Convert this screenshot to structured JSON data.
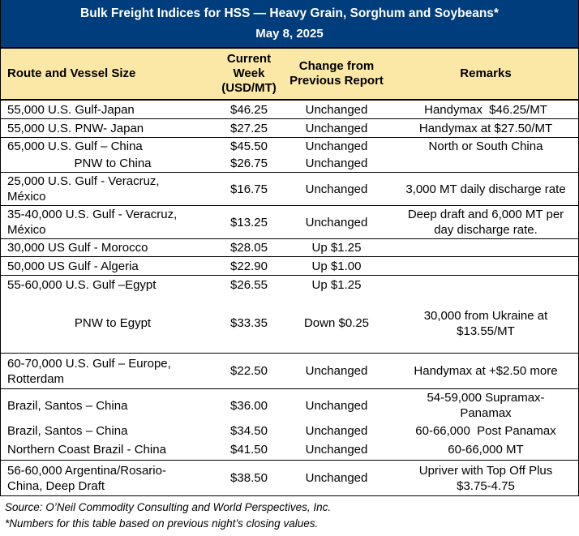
{
  "colors": {
    "header_bg": "#003d7c",
    "subheader_bg": "#fce8a6"
  },
  "header": {
    "title": "Bulk Freight Indices for HSS — Heavy Grain, Sorghum and Soybeans*",
    "date": "May 8, 2025"
  },
  "columns": [
    "Route and Vessel Size",
    "Current Week (USD/MT)",
    "Change from Previous Report",
    "Remarks"
  ],
  "table": {
    "groups": [
      {
        "lines": [
          {
            "route": "55,000 U.S. Gulf-Japan",
            "price": "$46.25",
            "change": "Unchanged",
            "remark": "Handymax  $46.25/MT"
          }
        ]
      },
      {
        "lines": [
          {
            "route": "55,000 U.S. PNW- Japan",
            "price": "$27.25",
            "change": "Unchanged",
            "remark": "Handymax at $27.50/MT"
          }
        ]
      },
      {
        "lines": [
          {
            "route": "65,000 U.S. Gulf – China",
            "price": "$45.50",
            "change": "Unchanged",
            "remark": "North or South China"
          },
          {
            "route": "PNW to China",
            "continuation": true,
            "price": "$26.75",
            "change": "Unchanged",
            "remark": ""
          }
        ]
      },
      {
        "lines": [
          {
            "route": "25,000 U.S. Gulf - Veracruz,\nMéxico",
            "price": "$16.75",
            "change": "Unchanged",
            "remark": "3,000 MT daily discharge rate"
          }
        ]
      },
      {
        "lines": [
          {
            "route": "35-40,000 U.S. Gulf - Veracruz,\nMéxico",
            "price": "$13.25",
            "change": "Unchanged",
            "remark": "Deep draft and 6,000 MT per\nday discharge rate."
          }
        ]
      },
      {
        "lines": [
          {
            "route": "30,000 US Gulf - Morocco",
            "price": "$28.05",
            "change": "Up $1.25",
            "remark": ""
          }
        ]
      },
      {
        "lines": [
          {
            "route": "50,000 US Gulf - Algeria",
            "price": "$22.90",
            "change": "Up $1.00",
            "remark": ""
          }
        ]
      },
      {
        "lines": [
          {
            "route": "55-60,000 U.S. Gulf –Egypt",
            "price": "$26.55",
            "change": "Up $1.25",
            "remark": ""
          },
          {
            "route": "PNW to Egypt",
            "continuation": true,
            "price": "$33.35",
            "change": "Down $0.25",
            "remark": "30,000 from Ukraine at\n$13.55/MT"
          }
        ]
      },
      {
        "lines": [
          {
            "route": "60-70,000 U.S. Gulf – Europe,\nRotterdam",
            "price": "$22.50",
            "change": "Unchanged",
            "remark": "Handymax at +$2.50 more"
          }
        ]
      },
      {
        "lines": [
          {
            "route": "Brazil, Santos – China",
            "price": "$36.00",
            "change": "Unchanged",
            "remark": "54-59,000 Supramax-\nPanamax"
          },
          {
            "route": "Brazil, Santos – China",
            "price": "$34.50",
            "change": "Unchanged",
            "remark": "60-66,000  Post Panamax"
          },
          {
            "route": "Northern Coast Brazil - China",
            "price": "$41.50",
            "change": "Unchanged",
            "remark": "60-66,000 MT"
          }
        ]
      },
      {
        "lines": [
          {
            "route": "56-60,000 Argentina/Rosario-\nChina, Deep Draft",
            "price": "$38.50",
            "change": "Unchanged",
            "remark": "Upriver with Top Off Plus\n$3.75-4.75"
          }
        ]
      }
    ]
  },
  "footer": {
    "source": "Source: O’Neil Commodity Consulting and World Perspectives, Inc.",
    "note": "*Numbers for this table based on previous night’s closing values."
  }
}
